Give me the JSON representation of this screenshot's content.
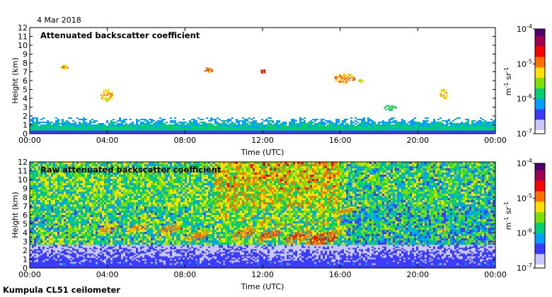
{
  "date_label": "4 Mar 2018",
  "footer_label": "Kumpula CL51 ceilometer",
  "colormap": [
    "#ffffff",
    "#c8c8ff",
    "#3c3cff",
    "#00a0ff",
    "#00d070",
    "#7ee000",
    "#ffe000",
    "#ff7000",
    "#ff0000",
    "#a00050",
    "#500070"
  ],
  "chart_data": [
    {
      "type": "heatmap",
      "title": "Attenuated backscatter coefficient",
      "xlabel": "Time (UTC)",
      "ylabel": "Height (km)",
      "x_ticks": [
        "00:00",
        "04:00",
        "08:00",
        "12:00",
        "16:00",
        "20:00",
        "00:00"
      ],
      "y_ticks": [
        "0",
        "1",
        "2",
        "3",
        "4",
        "5",
        "6",
        "7",
        "8",
        "9",
        "10",
        "11",
        "12"
      ],
      "xlim_hours": [
        0,
        24
      ],
      "ylim_km": [
        0,
        12
      ],
      "colorbar_ticks": [
        "10",
        "10",
        "10",
        "10"
      ],
      "colorbar_exponents": [
        "-4",
        "-5",
        "-6",
        "-7"
      ],
      "colorbar_values": [
        0.0001,
        1e-05,
        1e-06,
        1e-07
      ],
      "colorbar_scale": "log",
      "colorbar_unit": {
        "a": "m",
        "a_exp": "-1",
        "b": "sr",
        "b_exp": "-1"
      },
      "features": [
        {
          "kind": "surface_layer",
          "hours": [
            0,
            24
          ],
          "km": [
            0,
            2
          ],
          "level": 0.28
        },
        {
          "kind": "cloud",
          "hour": 1.8,
          "km": 7.6,
          "dkm": 0.6,
          "dh": 0.12,
          "level": 0.55
        },
        {
          "kind": "cloud",
          "hour": 3.95,
          "km": 4.4,
          "dkm": 1.4,
          "dh": 0.25,
          "level": 0.55
        },
        {
          "kind": "cloud",
          "hour": 9.2,
          "km": 7.3,
          "dkm": 0.6,
          "dh": 0.15,
          "level": 0.65
        },
        {
          "kind": "cloud",
          "hour": 12.0,
          "km": 7.1,
          "dkm": 0.4,
          "dh": 0.08,
          "level": 0.7
        },
        {
          "kind": "cloud",
          "hour": 16.2,
          "km": 6.3,
          "dkm": 1.2,
          "dh": 0.45,
          "level": 0.6
        },
        {
          "kind": "cloud",
          "hour": 17.0,
          "km": 6.0,
          "dkm": 0.4,
          "dh": 0.1,
          "level": 0.45
        },
        {
          "kind": "cloud",
          "hour": 18.5,
          "km": 3.0,
          "dkm": 0.6,
          "dh": 0.3,
          "level": 0.35
        },
        {
          "kind": "cloud",
          "hour": 21.3,
          "km": 4.5,
          "dkm": 1.2,
          "dh": 0.12,
          "level": 0.55
        }
      ]
    },
    {
      "type": "heatmap",
      "title": "Raw attenuated backscatter coefficient",
      "xlabel": "Time (UTC)",
      "ylabel": "Height (km)",
      "x_ticks": [
        "00:00",
        "04:00",
        "08:00",
        "12:00",
        "16:00",
        "20:00",
        "00:00"
      ],
      "y_ticks": [
        "0",
        "1",
        "2",
        "3",
        "4",
        "5",
        "6",
        "7",
        "8",
        "9",
        "10",
        "11",
        "12"
      ],
      "xlim_hours": [
        0,
        24
      ],
      "ylim_km": [
        0,
        12
      ],
      "colorbar_ticks": [
        "10",
        "10",
        "10",
        "10"
      ],
      "colorbar_exponents": [
        "-4",
        "-5",
        "-6",
        "-7"
      ],
      "colorbar_values": [
        0.0001,
        1e-05,
        1e-06,
        1e-07
      ],
      "colorbar_scale": "log",
      "colorbar_unit": {
        "a": "m",
        "a_exp": "-1",
        "b": "sr",
        "b_exp": "-1"
      },
      "features": [
        {
          "kind": "noise_field",
          "hours": [
            0,
            24
          ],
          "km": [
            0,
            12
          ]
        },
        {
          "kind": "fallstreak",
          "hour": 4.0,
          "km": 4.5,
          "dkm": 1.2,
          "dh": 0.35,
          "level": 0.58
        },
        {
          "kind": "fallstreak",
          "hour": 5.5,
          "km": 4.6,
          "dkm": 1.2,
          "dh": 0.35,
          "level": 0.58
        },
        {
          "kind": "fallstreak",
          "hour": 7.2,
          "km": 4.5,
          "dkm": 1.3,
          "dh": 0.4,
          "level": 0.6
        },
        {
          "kind": "fallstreak",
          "hour": 8.6,
          "km": 3.7,
          "dkm": 1.2,
          "dh": 0.4,
          "level": 0.6
        },
        {
          "kind": "fallstreak",
          "hour": 11.0,
          "km": 4.0,
          "dkm": 1.5,
          "dh": 0.4,
          "level": 0.62
        },
        {
          "kind": "fallstreak",
          "hour": 12.3,
          "km": 3.8,
          "dkm": 1.4,
          "dh": 0.4,
          "level": 0.64
        },
        {
          "kind": "fallstreak",
          "hour": 13.8,
          "km": 3.6,
          "dkm": 1.5,
          "dh": 0.45,
          "level": 0.66
        },
        {
          "kind": "fallstreak",
          "hour": 15.1,
          "km": 3.4,
          "dkm": 2.0,
          "dh": 0.6,
          "level": 0.68
        },
        {
          "kind": "fallstreak",
          "hour": 16.2,
          "km": 6.5,
          "dkm": 0.9,
          "dh": 0.25,
          "level": 0.6
        },
        {
          "kind": "fallstreak",
          "hour": 21.3,
          "km": 4.4,
          "dkm": 0.7,
          "dh": 0.12,
          "level": 0.55
        },
        {
          "kind": "surface_layer",
          "hours": [
            0,
            24
          ],
          "km": [
            0,
            2.6
          ],
          "level": 0.12
        }
      ]
    }
  ]
}
